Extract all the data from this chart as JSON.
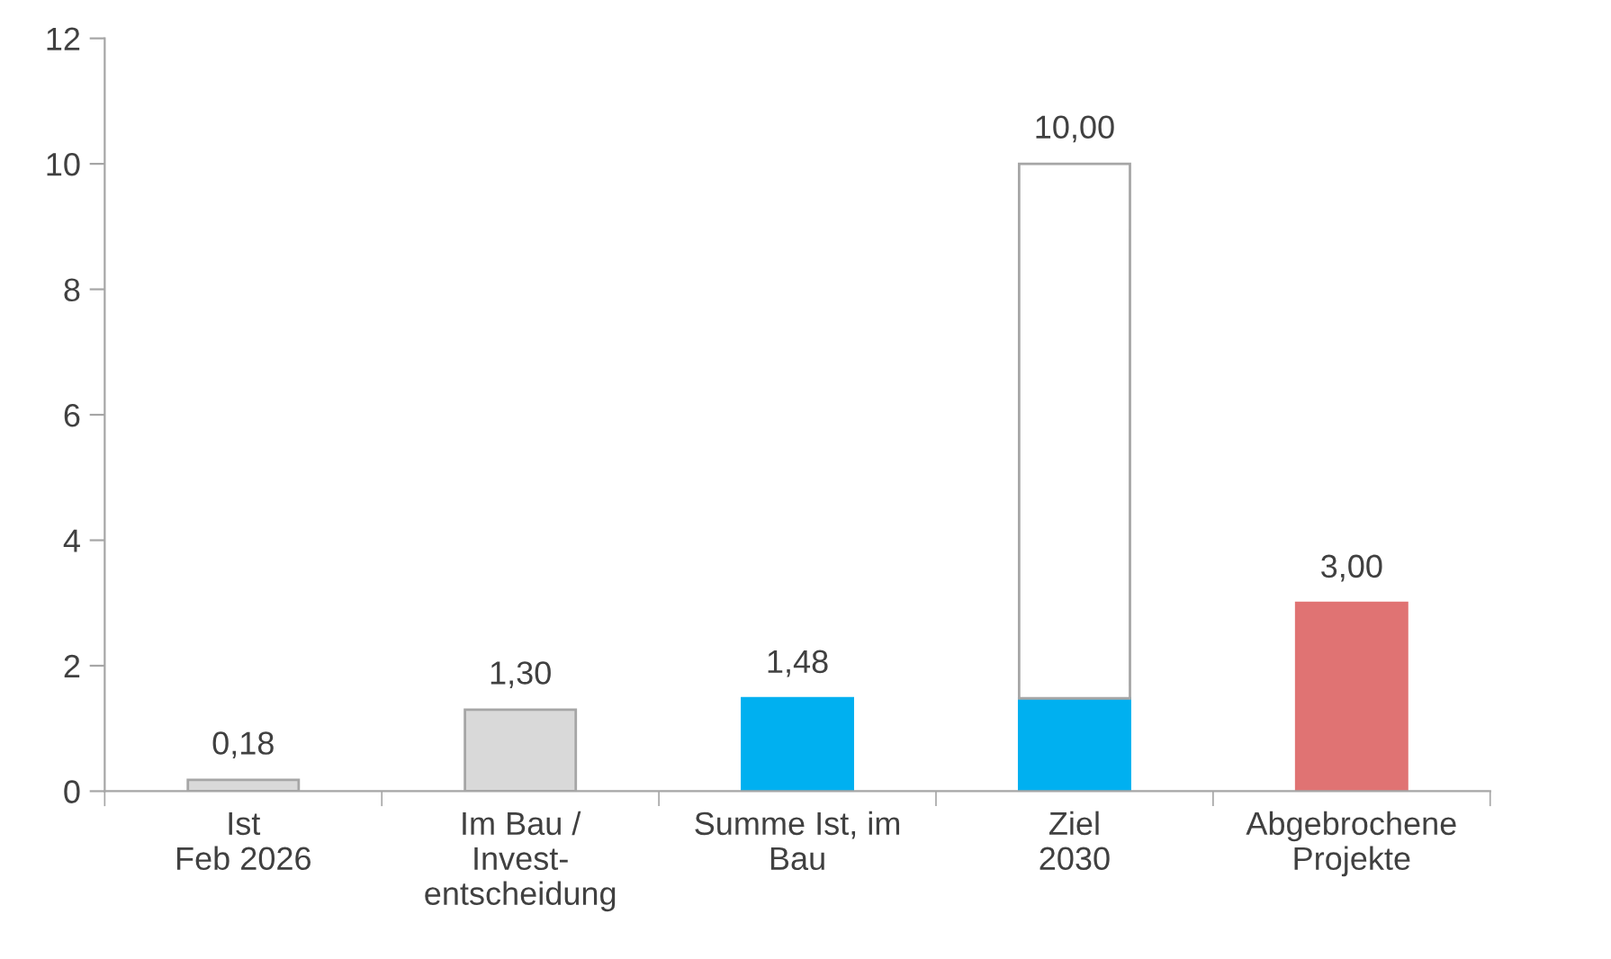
{
  "chart_data": {
    "type": "bar",
    "stacked": true,
    "categories": [
      "Ist\nFeb 2026",
      "Im Bau /\nInvest-\nentscheidung",
      "Summe Ist, im\nBau",
      "Ziel\n2030",
      "Abgebrochene\nProjekte"
    ],
    "series": [
      {
        "colors": [
          "#d9d9d9",
          "#d9d9d9",
          "#00b0f0",
          "#00b0f0",
          "#e07373"
        ],
        "values": [
          0.18,
          1.3,
          1.48,
          1.48,
          3.0
        ]
      },
      {
        "colors": [
          null,
          null,
          null,
          "#ffffff",
          null
        ],
        "values": [
          null,
          null,
          null,
          8.52,
          null
        ]
      }
    ],
    "totals": [
      "0,18",
      "1,30",
      "1,48",
      "10,00",
      "3,00"
    ],
    "ylim": [
      0,
      12
    ],
    "yticks": [
      0,
      2,
      4,
      6,
      8,
      10,
      12
    ],
    "grid": false,
    "legend": false
  }
}
